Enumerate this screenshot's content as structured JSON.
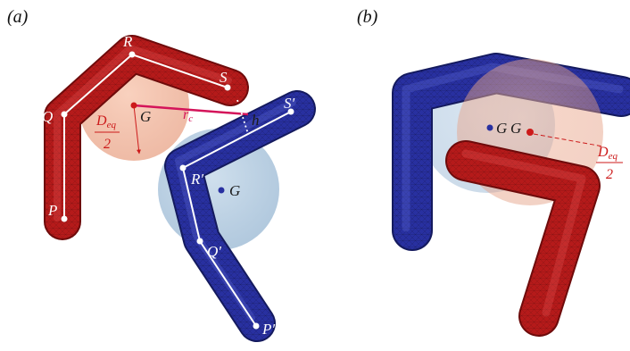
{
  "panels": {
    "a": {
      "label": "(a)"
    },
    "b": {
      "label": "(b)"
    }
  },
  "points_a": {
    "P": "P",
    "Q": "Q",
    "R": "R",
    "S": "S",
    "P_prime": "P′",
    "Q_prime": "Q′",
    "R_prime": "R′",
    "S_prime": "S′",
    "G_red": "G",
    "G_blue": "G",
    "rc_main": "r",
    "rc_sub": "c",
    "h": "h",
    "deq_main": "D",
    "deq_sub": "eq",
    "deq_den": "2"
  },
  "labels_b": {
    "G_blue": "G",
    "G_red": "G",
    "deq_main": "D",
    "deq_sub": "eq",
    "deq_den": "2"
  },
  "colors": {
    "red_body": "#b51a1a",
    "red_dark": "#6e0b0b",
    "blue_body": "#2830a0",
    "blue_dark": "#141a5e",
    "sphere_red": "#f4b9a0",
    "sphere_blue": "#a9c6e0",
    "pink": "#d4145a"
  }
}
